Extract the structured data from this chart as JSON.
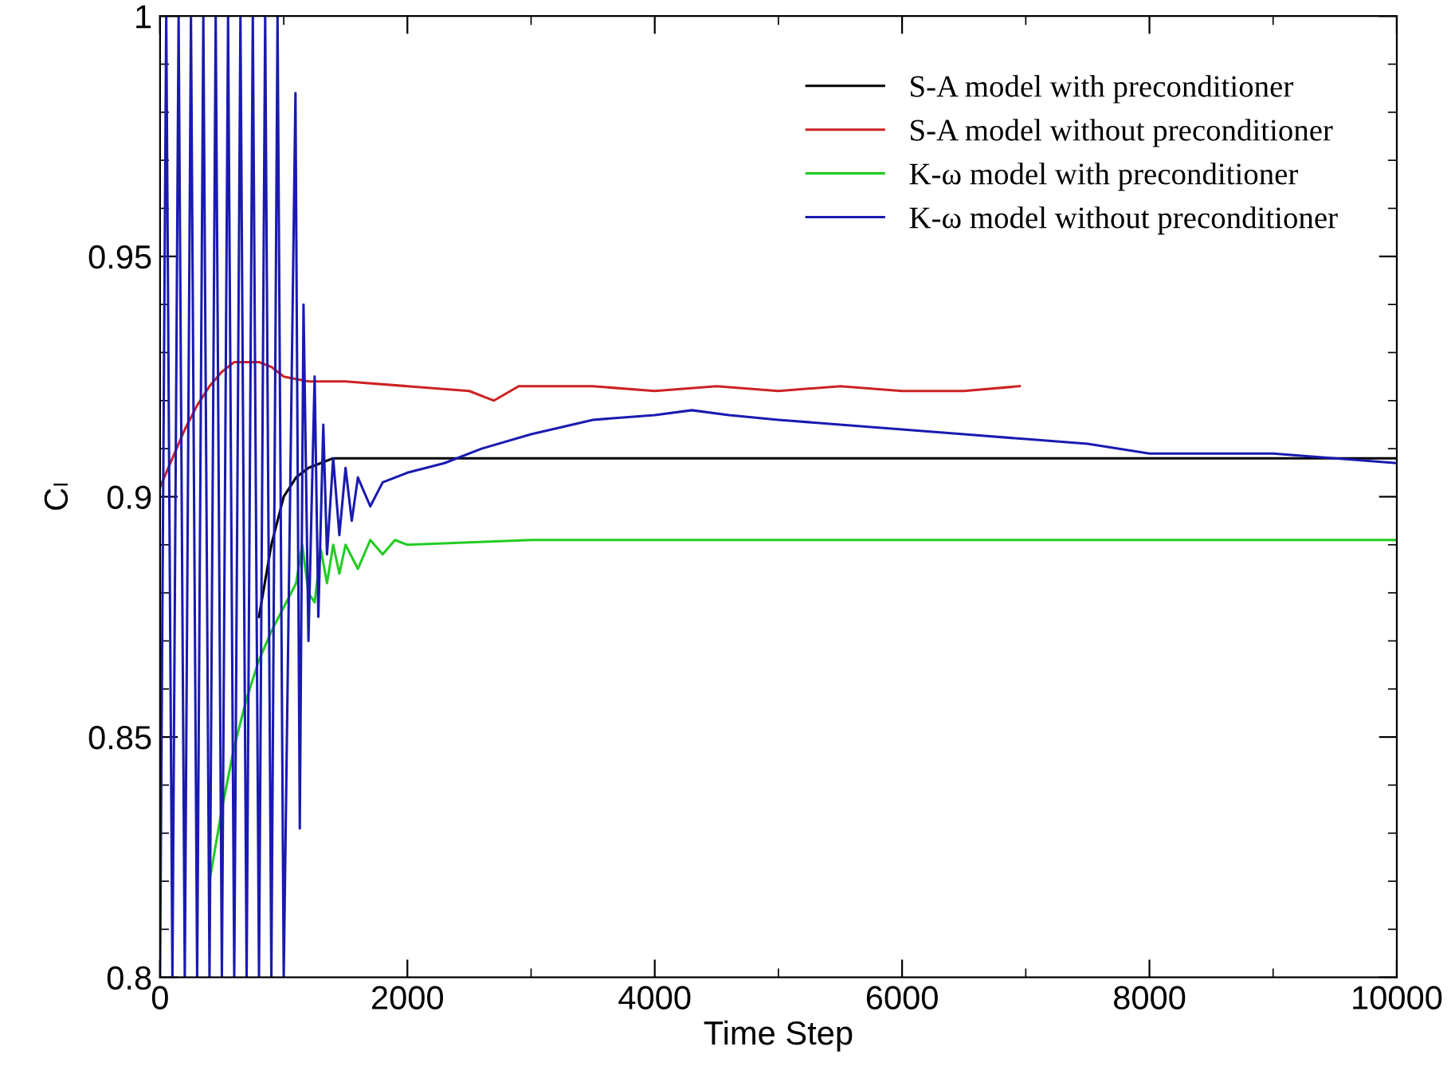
{
  "chart_data": {
    "type": "line",
    "xlabel": "Time Step",
    "ylabel": "Cₗ",
    "xlim": [
      0,
      10000
    ],
    "ylim": [
      0.8,
      1
    ],
    "xticks": [
      0,
      2000,
      4000,
      6000,
      8000,
      10000
    ],
    "yticks": [
      0.8,
      0.85,
      0.9,
      0.95,
      1
    ],
    "grid": false,
    "legend": "top right",
    "marker": "none",
    "line_style": "solid",
    "series": [
      {
        "name": "S-A model with preconditioner",
        "color": "#000000",
        "x": [
          800,
          900,
          1000,
          1100,
          1200,
          1300,
          1400,
          1600,
          2000,
          3000,
          4000,
          5000,
          6000,
          7000,
          8000,
          9000,
          10000
        ],
        "values": [
          0.875,
          0.89,
          0.9,
          0.904,
          0.906,
          0.907,
          0.908,
          0.908,
          0.908,
          0.908,
          0.908,
          0.908,
          0.908,
          0.908,
          0.908,
          0.908,
          0.908
        ]
      },
      {
        "name": "S-A model without preconditioner",
        "color": "#cc2222",
        "x": [
          0,
          100,
          200,
          300,
          400,
          500,
          600,
          700,
          800,
          900,
          1000,
          1200,
          1500,
          2000,
          2500,
          2700,
          2900,
          3500,
          4000,
          4500,
          5000,
          5500,
          6000,
          6500,
          6950
        ],
        "values": [
          0.902,
          0.908,
          0.914,
          0.919,
          0.923,
          0.926,
          0.928,
          0.928,
          0.928,
          0.927,
          0.925,
          0.924,
          0.924,
          0.923,
          0.922,
          0.92,
          0.923,
          0.923,
          0.922,
          0.923,
          0.922,
          0.923,
          0.922,
          0.922,
          0.923
        ]
      },
      {
        "name": "K-ω model with preconditioner",
        "color": "#22cc22",
        "x": [
          400,
          500,
          600,
          700,
          800,
          900,
          1000,
          1100,
          1150,
          1200,
          1250,
          1300,
          1350,
          1400,
          1450,
          1500,
          1600,
          1700,
          1800,
          1900,
          2000,
          3000,
          4000,
          5000,
          6000,
          7000,
          8000,
          9000,
          10000
        ],
        "values": [
          0.82,
          0.835,
          0.848,
          0.858,
          0.866,
          0.872,
          0.877,
          0.882,
          0.89,
          0.88,
          0.878,
          0.889,
          0.882,
          0.89,
          0.884,
          0.89,
          0.885,
          0.891,
          0.888,
          0.891,
          0.89,
          0.891,
          0.891,
          0.891,
          0.891,
          0.891,
          0.891,
          0.891,
          0.891
        ]
      },
      {
        "name": "K-ω model without preconditioner",
        "color": "#1a1ab0",
        "x": [
          0,
          50,
          100,
          150,
          200,
          250,
          300,
          350,
          400,
          450,
          500,
          550,
          600,
          650,
          700,
          750,
          800,
          850,
          900,
          950,
          1000,
          1095,
          1130,
          1160,
          1200,
          1250,
          1280,
          1320,
          1350,
          1400,
          1450,
          1500,
          1550,
          1600,
          1700,
          1800,
          2000,
          2300,
          2600,
          3000,
          3500,
          4000,
          4300,
          4600,
          5000,
          5500,
          6000,
          6500,
          7000,
          7500,
          8000,
          8500,
          9000,
          9500,
          10000
        ],
        "values": [
          0.8,
          1,
          0.8,
          1,
          0.8,
          1,
          0.8,
          1,
          0.8,
          1,
          0.8,
          1,
          0.8,
          1,
          0.8,
          1,
          0.8,
          1,
          0.8,
          1,
          0.8,
          0.984,
          0.831,
          0.94,
          0.87,
          0.925,
          0.875,
          0.915,
          0.888,
          0.908,
          0.892,
          0.906,
          0.895,
          0.904,
          0.898,
          0.903,
          0.905,
          0.907,
          0.91,
          0.913,
          0.916,
          0.917,
          0.918,
          0.917,
          0.916,
          0.915,
          0.914,
          0.913,
          0.912,
          0.911,
          0.909,
          0.909,
          0.909,
          0.908,
          0.907
        ]
      }
    ]
  }
}
